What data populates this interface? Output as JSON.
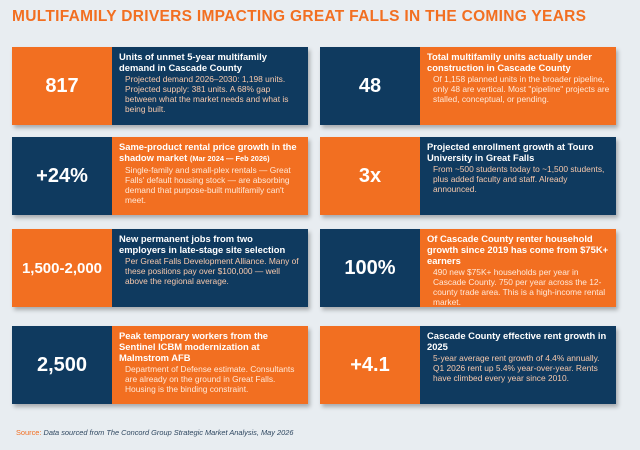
{
  "title": "MULTIFAMILY DRIVERS IMPACTING GREAT FALLS IN THE COMING YEARS",
  "cards": [
    {
      "value": "817",
      "heading": "Units of unmet 5-year multifamily demand in Cascade County",
      "heading_sub": "",
      "body": "Projected demand 2026–2030: 1,198 units. Projected supply: 381 units. A 68% gap between what the market needs and what is being built."
    },
    {
      "value": "48",
      "heading": "Total multifamily units actually under construction in Cascade County",
      "heading_sub": "",
      "body": "Of 1,158 planned units in the broader pipeline, only 48 are vertical. Most \"pipeline\" projects are stalled, conceptual, or pending."
    },
    {
      "value": "+24%",
      "heading": "Same-product rental price growth in the shadow market",
      "heading_sub": "(Mar 2024 — Feb 2026)",
      "body": "Single-family and small-plex rentals — Great Falls' default housing stock — are absorbing demand that purpose-built multifamily can't meet."
    },
    {
      "value": "3x",
      "heading": "Projected enrollment growth at Touro University in Great Falls",
      "heading_sub": "",
      "body": "From ~500 students today to ~1,500 students, plus added faculty and staff. Already announced."
    },
    {
      "value": "1,500-2,000",
      "heading": "New permanent jobs from two employers in late-stage site selection",
      "heading_sub": "",
      "body": "Per Great Falls Development Alliance. Many of these positions pay over $100,000 — well above the regional average."
    },
    {
      "value": "100%",
      "heading": "Of Cascade County renter household growth since 2019 has come from $75K+ earners",
      "heading_sub": "",
      "body": "490 new $75K+ households per year in Cascade County. 750 per year across the 12-county trade area. This is a high-income rental market."
    },
    {
      "value": "2,500",
      "heading": "Peak temporary workers from the Sentinel ICBM modernization at Malmstrom AFB",
      "heading_sub": "",
      "body": "Department of Defense estimate. Consultants are already on the ground in Great Falls. Housing is the binding constraint."
    },
    {
      "value": "+4.1",
      "heading": "Cascade County effective rent growth in 2025",
      "heading_sub": "",
      "body": "5-year average rent growth of 4.4% annually. Q1 2026 rent up 5.4% year-over-year. Rents have climbed every year since 2010."
    }
  ],
  "source_label": "Source:",
  "source_text": "Data sourced from The Concord Group Strategic Market Analysis, May 2026"
}
